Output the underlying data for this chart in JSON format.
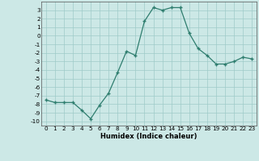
{
  "x": [
    0,
    1,
    2,
    3,
    4,
    5,
    6,
    7,
    8,
    9,
    10,
    11,
    12,
    13,
    14,
    15,
    16,
    17,
    18,
    19,
    20,
    21,
    22,
    23
  ],
  "y": [
    -7.5,
    -7.8,
    -7.8,
    -7.8,
    -8.7,
    -9.7,
    -8.1,
    -6.7,
    -4.3,
    -1.8,
    -2.3,
    1.7,
    3.3,
    3.0,
    3.3,
    3.3,
    0.3,
    -1.5,
    -2.3,
    -3.3,
    -3.3,
    -3.0,
    -2.5,
    -2.7
  ],
  "xlabel": "Humidex (Indice chaleur)",
  "ylim": [
    -10.5,
    4.0
  ],
  "xlim": [
    -0.5,
    23.5
  ],
  "yticks": [
    3,
    2,
    1,
    0,
    -1,
    -2,
    -3,
    -4,
    -5,
    -6,
    -7,
    -8,
    -9,
    -10
  ],
  "xticks": [
    0,
    1,
    2,
    3,
    4,
    5,
    6,
    7,
    8,
    9,
    10,
    11,
    12,
    13,
    14,
    15,
    16,
    17,
    18,
    19,
    20,
    21,
    22,
    23
  ],
  "line_color": "#2e7d6e",
  "marker_color": "#2e7d6e",
  "bg_color": "#cce8e6",
  "grid_color": "#9fcbc8",
  "xlabel_fontsize": 6.0,
  "tick_fontsize": 5.2
}
